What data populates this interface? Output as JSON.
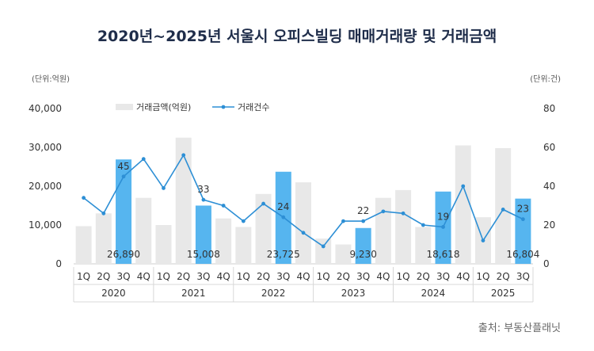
{
  "chart_data": {
    "type": "bar",
    "title": "2020년~2025년 서울시 오피스빌딩 매매거래량 및 거래금액",
    "left_unit": "(단위:억원)",
    "right_unit": "(단위:건)",
    "source": "출처: 부동산플래닛",
    "ylim_left": [
      0,
      40000
    ],
    "yticks_left": [
      "0",
      "10,000",
      "20,000",
      "30,000",
      "40,000"
    ],
    "ylim_right": [
      0,
      80
    ],
    "yticks_right": [
      "0",
      "20",
      "40",
      "60",
      "80"
    ],
    "years": [
      "2020",
      "2021",
      "2022",
      "2023",
      "2024",
      "2025"
    ],
    "categories": [
      "1Q",
      "2Q",
      "3Q",
      "4Q",
      "1Q",
      "2Q",
      "3Q",
      "4Q",
      "1Q",
      "2Q",
      "3Q",
      "4Q",
      "1Q",
      "2Q",
      "3Q",
      "4Q",
      "1Q",
      "2Q",
      "3Q",
      "4Q",
      "1Q",
      "2Q",
      "3Q"
    ],
    "series": [
      {
        "name": "거래금액(억원)",
        "values": [
          9700,
          13000,
          26890,
          17000,
          10000,
          32500,
          15008,
          11700,
          9500,
          18000,
          23725,
          21000,
          6500,
          5000,
          9230,
          17000,
          19000,
          9500,
          18618,
          30500,
          12000,
          29800,
          16804
        ],
        "color": "#e8e8e8",
        "highlight_color": "#56b5ef"
      },
      {
        "name": "거래건수",
        "values": [
          34,
          26,
          45,
          54,
          39,
          56,
          33,
          30,
          22,
          31,
          24,
          16,
          9,
          22,
          22,
          27,
          26,
          20,
          19,
          40,
          12,
          28,
          23
        ],
        "color": "#2d8fd5"
      }
    ],
    "highlight_indices": [
      2,
      6,
      10,
      14,
      18,
      22
    ],
    "bar_labels": [
      "26,890",
      "15,008",
      "23,725",
      "9,230",
      "18,618",
      "16,804"
    ],
    "line_labels": [
      "45",
      "33",
      "24",
      "22",
      "19",
      "23"
    ]
  }
}
